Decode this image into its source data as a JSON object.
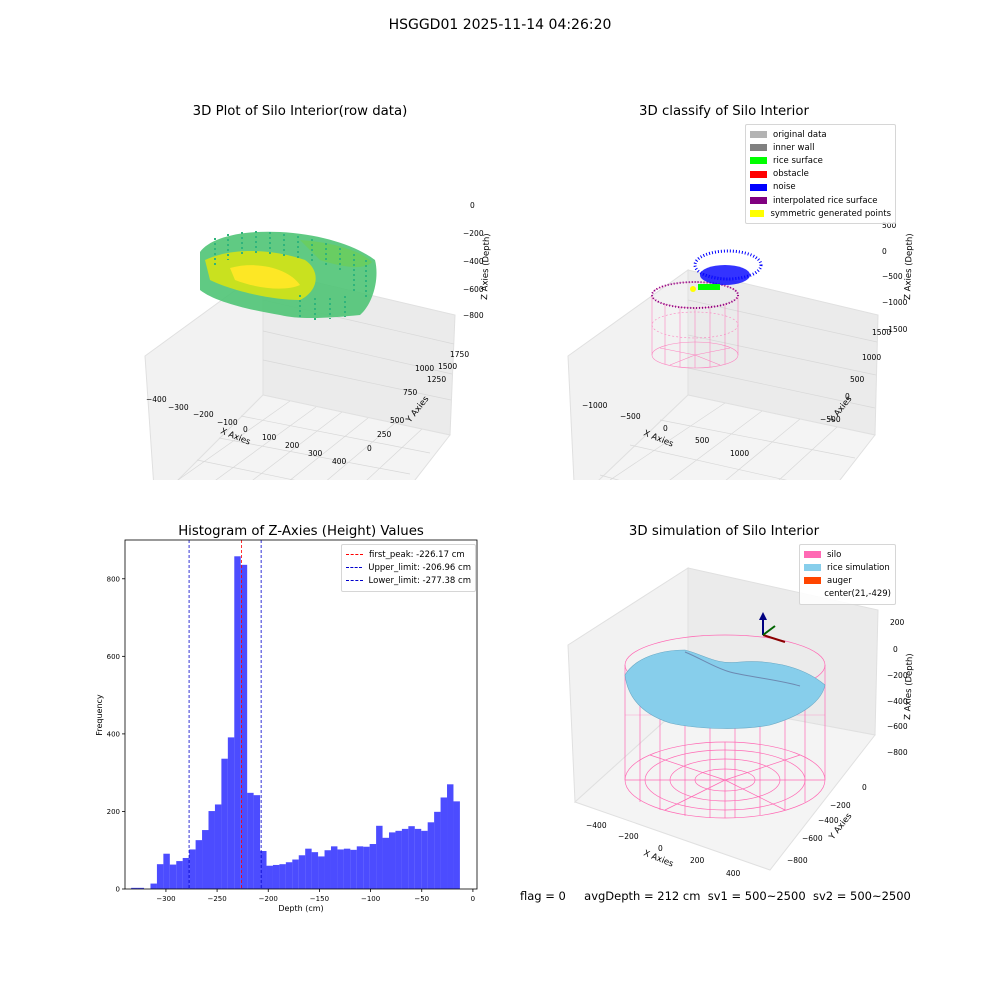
{
  "suptitle": "HSGGD01 2025-11-14 04:26:20",
  "footer": {
    "flag": "flag = 0",
    "avg_depth": "avgDepth = 212 cm",
    "sv1": "sv1 = 500~2500",
    "sv2": "sv2 = 500~2500"
  },
  "panels": {
    "raw": {
      "title": "3D Plot of Silo Interior(row data)",
      "xlabel": "X Axies",
      "ylabel": "Y Axies",
      "zlabel": "Z Axies (Depth)",
      "xticks": [
        "−400",
        "−300",
        "−200",
        "−100",
        "0",
        "100",
        "200",
        "300",
        "400"
      ],
      "yticks": [
        "0",
        "250",
        "500",
        "750",
        "1000",
        "1250",
        "1500",
        "1750"
      ],
      "zticks": [
        "0",
        "−200",
        "−400",
        "−600",
        "−800"
      ]
    },
    "classify": {
      "title": "3D classify of Silo Interior",
      "xlabel": "X Axies",
      "ylabel": "Y Axies",
      "zlabel": "Z Axies (Depth)",
      "xticks": [
        "−1000",
        "−500",
        "0",
        "500",
        "1000"
      ],
      "yticks": [
        "−500",
        "0",
        "500",
        "1000",
        "1500"
      ],
      "zticks": [
        "500",
        "0",
        "−500",
        "−1000",
        "−1500"
      ],
      "legend": [
        {
          "label": "original data",
          "color": "#b3b3b3"
        },
        {
          "label": "inner wall",
          "color": "#808080"
        },
        {
          "label": "rice surface",
          "color": "#00ff00"
        },
        {
          "label": "obstacle",
          "color": "#ff0000"
        },
        {
          "label": "noise",
          "color": "#0000ff"
        },
        {
          "label": "interpolated rice surface",
          "color": "#800080"
        },
        {
          "label": "symmetric generated points",
          "color": "#ffff00"
        }
      ]
    },
    "simulation": {
      "title": "3D simulation of Silo Interior",
      "xlabel": "X Axies",
      "ylabel": "Y Axies",
      "zlabel": "Z Axies (Depth)",
      "xticks": [
        "−400",
        "−200",
        "0",
        "200",
        "400"
      ],
      "yticks": [
        "−800",
        "−600",
        "−400",
        "−200",
        "0"
      ],
      "zticks": [
        "200",
        "0",
        "−200",
        "−400",
        "−600",
        "−800"
      ],
      "legend": [
        {
          "label": "silo",
          "color": "#ff69b4"
        },
        {
          "label": "rice simulation",
          "color": "#87ceeb"
        },
        {
          "label": "auger",
          "color": "#ff4500"
        },
        {
          "label": "center(21,-429)",
          "color": ""
        }
      ]
    }
  },
  "chart_data": {
    "type": "bar",
    "title": "Histogram of Z-Axies (Height) Values",
    "xlabel": "Depth (cm)",
    "ylabel": "Frequency",
    "xlim": [
      -340,
      4
    ],
    "ylim": [
      0,
      900
    ],
    "xticks": [
      -300,
      -250,
      -200,
      -150,
      -100,
      -50,
      0
    ],
    "yticks": [
      0,
      200,
      400,
      600,
      800
    ],
    "bar_color": "#0000ff",
    "bin_width": 6.3,
    "bin_start": -334,
    "values": [
      3,
      3,
      0,
      14,
      64,
      91,
      63,
      72,
      80,
      102,
      126,
      152,
      201,
      218,
      336,
      391,
      858,
      836,
      248,
      242,
      98,
      60,
      62,
      64,
      69,
      76,
      87,
      104,
      95,
      84,
      100,
      110,
      102,
      104,
      101,
      110,
      109,
      116,
      163,
      132,
      146,
      150,
      155,
      162,
      155,
      150,
      172,
      199,
      236,
      270,
      226
    ],
    "vlines": [
      {
        "x": -226.17,
        "color": "#ff0000",
        "label": "first_peak: -226.17 cm"
      },
      {
        "x": -206.96,
        "color": "#0000cc",
        "label": "Upper_limit: -206.96 cm"
      },
      {
        "x": -277.38,
        "color": "#0000cc",
        "label": "Lower_limit: -277.38 cm"
      }
    ],
    "legend_position": "upper-right"
  }
}
